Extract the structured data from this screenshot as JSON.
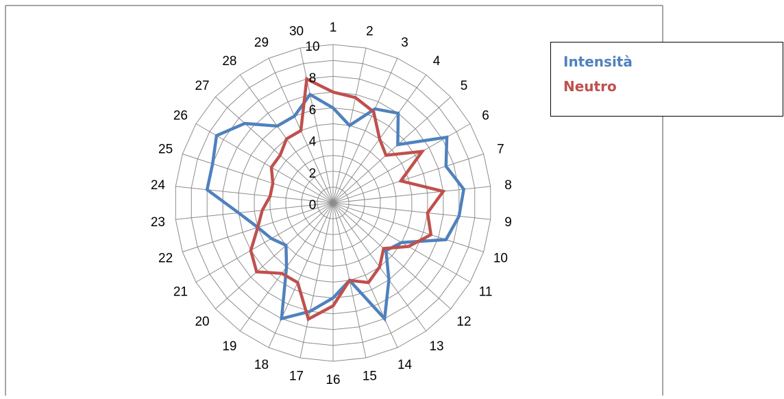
{
  "chart_data": {
    "type": "radar",
    "categories": [
      "1",
      "2",
      "3",
      "4",
      "5",
      "6",
      "7",
      "8",
      "9",
      "10",
      "11",
      "12",
      "13",
      "14",
      "15",
      "16",
      "17",
      "18",
      "19",
      "20",
      "21",
      "22",
      "23",
      "24",
      "25",
      "26",
      "27",
      "28",
      "29",
      "30"
    ],
    "rlim": [
      0,
      10
    ],
    "r_ticks": [
      "0",
      "2",
      "4",
      "6",
      "8",
      "10"
    ],
    "grid": true,
    "legend_position": "top-right",
    "series": [
      {
        "name": "Intensità",
        "color": "#4f81bd",
        "values": [
          6,
          5,
          6.5,
          7,
          5.5,
          8.3,
          7.5,
          8.3,
          8,
          7.5,
          5,
          4.5,
          6,
          8,
          5,
          6,
          7,
          8,
          5,
          4,
          4.5,
          5,
          6,
          8,
          8,
          8.5,
          7.5,
          6,
          6,
          7
        ]
      },
      {
        "name": "Neutro",
        "color": "#c0504d",
        "values": [
          7,
          6.8,
          6.3,
          5,
          4.5,
          6.5,
          4.5,
          7,
          6,
          6.5,
          5.5,
          4.3,
          5,
          5.5,
          5,
          6.5,
          7.5,
          5.5,
          5.5,
          6.5,
          6,
          5,
          4.5,
          4,
          4,
          4.5,
          4.5,
          5,
          5,
          8
        ]
      }
    ]
  }
}
